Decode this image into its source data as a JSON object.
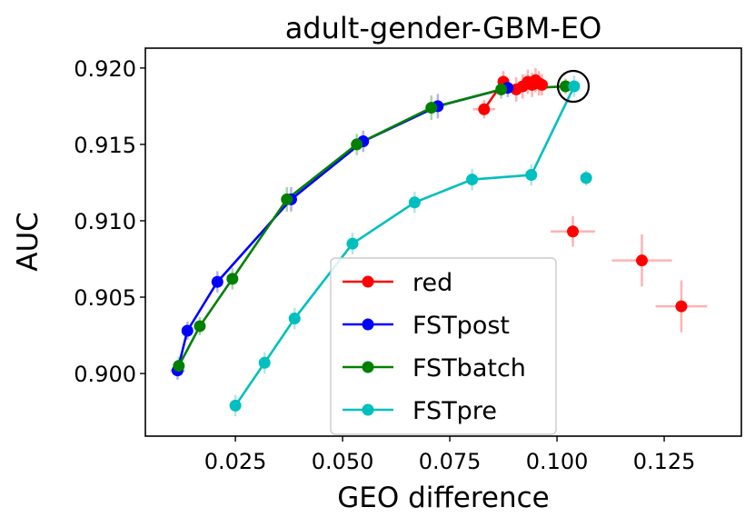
{
  "chart_data": {
    "type": "scatter",
    "title": "adult-gender-GBM-EO",
    "xlabel": "GEO difference",
    "ylabel": "AUC",
    "xlim": [
      0.004,
      0.143
    ],
    "ylim": [
      0.8959,
      0.9213
    ],
    "xticks": [
      0.025,
      0.05,
      0.075,
      0.1,
      0.125
    ],
    "xtick_labels": [
      "0.025",
      "0.050",
      "0.075",
      "0.100",
      "0.125"
    ],
    "yticks": [
      0.9,
      0.905,
      0.91,
      0.915,
      0.92
    ],
    "ytick_labels": [
      "0.900",
      "0.905",
      "0.910",
      "0.915",
      "0.920"
    ],
    "legend_position": "lower-center",
    "highlight_circle": {
      "x": 0.1038,
      "y": 0.9188
    },
    "series": [
      {
        "name": "red",
        "color": "#ff0000",
        "err_color": "#ff9999",
        "line": true,
        "points": [
          {
            "x": 0.083,
            "y": 0.9173,
            "xerr": 0.0026,
            "yerr": 0.0006
          },
          {
            "x": 0.0875,
            "y": 0.9191,
            "xerr": 0.0012,
            "yerr": 0.0007
          },
          {
            "x": 0.0905,
            "y": 0.9186,
            "xerr": 0.0012,
            "yerr": 0.0008
          },
          {
            "x": 0.092,
            "y": 0.9188,
            "xerr": 0.0012,
            "yerr": 0.0008
          },
          {
            "x": 0.0932,
            "y": 0.9191,
            "xerr": 0.0012,
            "yerr": 0.0008
          },
          {
            "x": 0.0942,
            "y": 0.9189,
            "xerr": 0.0012,
            "yerr": 0.0008
          },
          {
            "x": 0.095,
            "y": 0.9192,
            "xerr": 0.0012,
            "yerr": 0.0008
          },
          {
            "x": 0.0958,
            "y": 0.919,
            "xerr": 0.0012,
            "yerr": 0.0008
          },
          {
            "x": 0.0965,
            "y": 0.9189,
            "xerr": 0.0012,
            "yerr": 0.0007
          }
        ],
        "extra_points": [
          {
            "x": 0.1037,
            "y": 0.9093,
            "xerr": 0.0052,
            "yerr": 0.001
          },
          {
            "x": 0.1198,
            "y": 0.9074,
            "xerr": 0.007,
            "yerr": 0.0017
          },
          {
            "x": 0.129,
            "y": 0.9044,
            "xerr": 0.006,
            "yerr": 0.0017
          }
        ]
      },
      {
        "name": "FSTpost",
        "color": "#0000ff",
        "err_color": "#9999ee",
        "line": true,
        "points": [
          {
            "x": 0.0115,
            "y": 0.9002,
            "xerr": 0.0017,
            "yerr": 0.0006
          },
          {
            "x": 0.0138,
            "y": 0.9028,
            "xerr": 0.001,
            "yerr": 0.0006
          },
          {
            "x": 0.0208,
            "y": 0.906,
            "xerr": 0.001,
            "yerr": 0.0007
          },
          {
            "x": 0.038,
            "y": 0.9114,
            "xerr": 0.001,
            "yerr": 0.0008
          },
          {
            "x": 0.0548,
            "y": 0.9152,
            "xerr": 0.001,
            "yerr": 0.0007
          },
          {
            "x": 0.0722,
            "y": 0.9175,
            "xerr": 0.001,
            "yerr": 0.0008
          },
          {
            "x": 0.0885,
            "y": 0.9187,
            "xerr": 0.001,
            "yerr": 0.0006
          }
        ]
      },
      {
        "name": "FSTbatch",
        "color": "#008000",
        "err_color": "#88cc88",
        "line": true,
        "points": [
          {
            "x": 0.0118,
            "y": 0.9005,
            "xerr": 0.001,
            "yerr": 0.0006
          },
          {
            "x": 0.0167,
            "y": 0.9031,
            "xerr": 0.001,
            "yerr": 0.0006
          },
          {
            "x": 0.0243,
            "y": 0.9062,
            "xerr": 0.001,
            "yerr": 0.0007
          },
          {
            "x": 0.037,
            "y": 0.9114,
            "xerr": 0.001,
            "yerr": 0.0008
          },
          {
            "x": 0.0533,
            "y": 0.915,
            "xerr": 0.001,
            "yerr": 0.0007
          },
          {
            "x": 0.0707,
            "y": 0.9174,
            "xerr": 0.001,
            "yerr": 0.0008
          },
          {
            "x": 0.087,
            "y": 0.9186,
            "xerr": 0.001,
            "yerr": 0.0006
          },
          {
            "x": 0.102,
            "y": 0.9188,
            "xerr": 0.001,
            "yerr": 0.0005
          }
        ]
      },
      {
        "name": "FSTpre",
        "color": "#00bfbf",
        "err_color": "#99dddd",
        "line": true,
        "points": [
          {
            "x": 0.025,
            "y": 0.8979,
            "xerr": 0.0008,
            "yerr": 0.0007
          },
          {
            "x": 0.0318,
            "y": 0.9007,
            "xerr": 0.0008,
            "yerr": 0.0007
          },
          {
            "x": 0.0388,
            "y": 0.9036,
            "xerr": 0.0008,
            "yerr": 0.0007
          },
          {
            "x": 0.0523,
            "y": 0.9085,
            "xerr": 0.0008,
            "yerr": 0.0007
          },
          {
            "x": 0.0668,
            "y": 0.9112,
            "xerr": 0.0008,
            "yerr": 0.0007
          },
          {
            "x": 0.0802,
            "y": 0.9127,
            "xerr": 0.0008,
            "yerr": 0.0007
          },
          {
            "x": 0.094,
            "y": 0.913,
            "xerr": 0.0008,
            "yerr": 0.0007
          },
          {
            "x": 0.104,
            "y": 0.9188,
            "xerr": 0.0012,
            "yerr": 0.0007
          }
        ],
        "extra_points": [
          {
            "x": 0.1068,
            "y": 0.9128,
            "xerr": 0.0006,
            "yerr": 0.0005
          }
        ]
      }
    ]
  }
}
